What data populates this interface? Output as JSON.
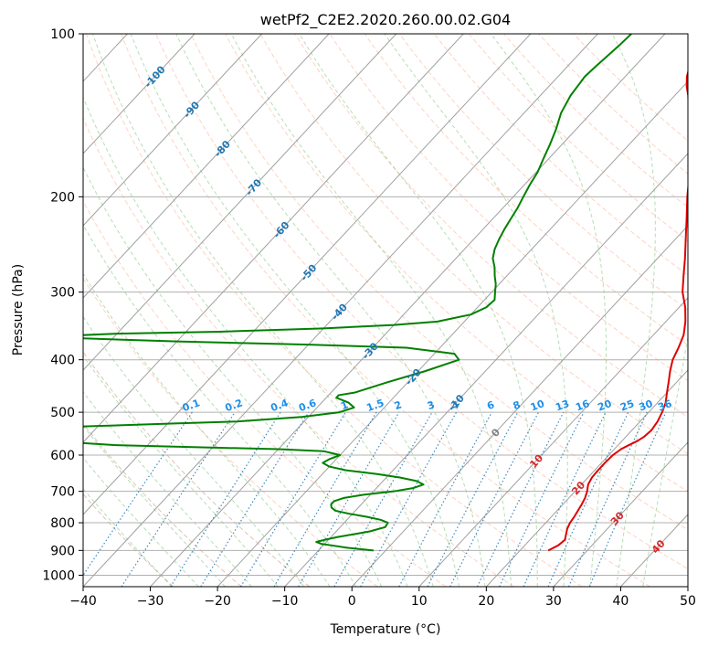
{
  "chart_data": {
    "type": "line",
    "title": "wetPf2_C2E2.2020.260.00.02.G04",
    "xlabel": "Temperature (°C)",
    "ylabel": "Pressure (hPa)",
    "xlim": [
      -40,
      50
    ],
    "ylim": [
      1050,
      100
    ],
    "y_scale": "log",
    "skew_per_decade_degC": 75,
    "x_ticks": [
      "−40",
      "−30",
      "−20",
      "−10",
      "0",
      "10",
      "20",
      "30",
      "40",
      "50"
    ],
    "y_ticks": [
      {
        "p": 100,
        "label": "100"
      },
      {
        "p": 200,
        "label": "200"
      },
      {
        "p": 300,
        "label": "300"
      },
      {
        "p": 400,
        "label": "400"
      },
      {
        "p": 500,
        "label": "500"
      },
      {
        "p": 600,
        "label": "600"
      },
      {
        "p": 700,
        "label": "700"
      },
      {
        "p": 800,
        "label": "800"
      },
      {
        "p": 900,
        "label": "900"
      },
      {
        "p": 1000,
        "label": "1000"
      }
    ],
    "grid": true,
    "isotherms": [
      -150,
      -140,
      -130,
      -120,
      -110,
      -100,
      -90,
      -80,
      -70,
      -60,
      -50,
      -40,
      -30,
      -20,
      -10,
      0,
      10,
      20,
      30,
      40,
      50
    ],
    "isotherm_labels": [
      {
        "text": "-100",
        "p": 120
      },
      {
        "text": "-90",
        "p": 138
      },
      {
        "text": "-80",
        "p": 163
      },
      {
        "text": "-70",
        "p": 192
      },
      {
        "text": "-60",
        "p": 230
      },
      {
        "text": "-50",
        "p": 276
      },
      {
        "text": "-40",
        "p": 326
      },
      {
        "text": "-30",
        "p": 385
      },
      {
        "text": "-20",
        "p": 430
      },
      {
        "text": "-10",
        "p": 480
      }
    ],
    "warm_labels": [
      {
        "text": "0",
        "p": 545,
        "color": "#808080"
      },
      {
        "text": "10",
        "p": 615,
        "color": "#d62728"
      },
      {
        "text": "20",
        "p": 690,
        "color": "#d62728"
      },
      {
        "text": "30",
        "p": 785,
        "color": "#d62728"
      },
      {
        "text": "40",
        "p": 885,
        "color": "#d62728"
      }
    ],
    "mixing_ratios": [
      "0.1",
      "0.2",
      "0.4",
      "0.6",
      "1",
      "1.5",
      "2",
      "3",
      "4",
      "6",
      "8",
      "10",
      "13",
      "16",
      "20",
      "25",
      "30",
      "36"
    ],
    "mixing_ratio_top_hPa": 500,
    "series": [
      {
        "role": "temperature",
        "color": "#e00000",
        "points": [
          [
            900,
            24.2
          ],
          [
            880,
            25.0
          ],
          [
            860,
            25.2
          ],
          [
            840,
            24.6
          ],
          [
            820,
            24.0
          ],
          [
            800,
            23.6
          ],
          [
            780,
            23.4
          ],
          [
            760,
            23.1
          ],
          [
            740,
            22.8
          ],
          [
            720,
            22.4
          ],
          [
            700,
            21.8
          ],
          [
            680,
            21.0
          ],
          [
            660,
            20.6
          ],
          [
            640,
            20.5
          ],
          [
            620,
            20.5
          ],
          [
            600,
            20.6
          ],
          [
            585,
            21.0
          ],
          [
            575,
            21.6
          ],
          [
            565,
            22.3
          ],
          [
            555,
            22.7
          ],
          [
            540,
            22.9
          ],
          [
            520,
            22.6
          ],
          [
            500,
            22.0
          ],
          [
            480,
            21.2
          ],
          [
            460,
            20.0
          ],
          [
            440,
            18.8
          ],
          [
            420,
            17.5
          ],
          [
            400,
            16.3
          ],
          [
            380,
            15.5
          ],
          [
            360,
            14.5
          ],
          [
            340,
            12.9
          ],
          [
            320,
            10.9
          ],
          [
            300,
            8.4
          ],
          [
            280,
            6.3
          ],
          [
            260,
            4.1
          ],
          [
            240,
            1.6
          ],
          [
            220,
            -1.1
          ],
          [
            200,
            -4.1
          ],
          [
            190,
            -5.6
          ],
          [
            180,
            -7.3
          ],
          [
            170,
            -9.0
          ],
          [
            160,
            -10.8
          ],
          [
            150,
            -13.0
          ],
          [
            140,
            -15.5
          ],
          [
            130,
            -18.0
          ],
          [
            125,
            -19.5
          ],
          [
            120,
            -20.8
          ],
          [
            115,
            -21.8
          ],
          [
            110,
            -22.5
          ],
          [
            105,
            -23.5
          ],
          [
            100,
            -24.5
          ]
        ]
      },
      {
        "role": "dewpoint",
        "color": "#008000",
        "points": [
          [
            900,
            -1.8
          ],
          [
            890,
            -6.0
          ],
          [
            880,
            -9.0
          ],
          [
            875,
            -10.5
          ],
          [
            868,
            -11.5
          ],
          [
            860,
            -10.5
          ],
          [
            850,
            -9.0
          ],
          [
            840,
            -7.0
          ],
          [
            830,
            -5.0
          ],
          [
            815,
            -3.3
          ],
          [
            800,
            -3.5
          ],
          [
            790,
            -5.0
          ],
          [
            780,
            -7.5
          ],
          [
            770,
            -10.5
          ],
          [
            760,
            -13.0
          ],
          [
            750,
            -14.0
          ],
          [
            740,
            -14.5
          ],
          [
            730,
            -14.5
          ],
          [
            720,
            -13.5
          ],
          [
            710,
            -11.0
          ],
          [
            700,
            -7.0
          ],
          [
            690,
            -4.5
          ],
          [
            680,
            -3.5
          ],
          [
            670,
            -5.0
          ],
          [
            660,
            -8.0
          ],
          [
            650,
            -12.0
          ],
          [
            640,
            -17.0
          ],
          [
            630,
            -20.0
          ],
          [
            620,
            -21.5
          ],
          [
            610,
            -21.0
          ],
          [
            600,
            -20.0
          ],
          [
            590,
            -23.0
          ],
          [
            585,
            -30.0
          ],
          [
            580,
            -43.0
          ],
          [
            575,
            -55.0
          ],
          [
            565,
            -65.0
          ],
          [
            560,
            -75.0
          ],
          [
            540,
            -77.0
          ],
          [
            535,
            -70.0
          ],
          [
            530,
            -60.0
          ],
          [
            525,
            -50.0
          ],
          [
            520,
            -40.0
          ],
          [
            510,
            -31.0
          ],
          [
            500,
            -26.0
          ],
          [
            490,
            -24.5
          ],
          [
            480,
            -26.0
          ],
          [
            470,
            -28.5
          ],
          [
            465,
            -28.5
          ],
          [
            460,
            -26.5
          ],
          [
            440,
            -23.0
          ],
          [
            420,
            -19.0
          ],
          [
            400,
            -15.5
          ],
          [
            390,
            -17.0
          ],
          [
            380,
            -25.0
          ],
          [
            375,
            -40.0
          ],
          [
            370,
            -60.0
          ],
          [
            365,
            -75.0
          ],
          [
            362,
            -79.0
          ],
          [
            358,
            -70.0
          ],
          [
            355,
            -55.0
          ],
          [
            350,
            -40.0
          ],
          [
            345,
            -30.0
          ],
          [
            340,
            -24.0
          ],
          [
            330,
            -20.0
          ],
          [
            320,
            -18.7
          ],
          [
            310,
            -18.5
          ],
          [
            300,
            -19.5
          ],
          [
            290,
            -20.5
          ],
          [
            280,
            -21.8
          ],
          [
            270,
            -23.0
          ],
          [
            260,
            -24.5
          ],
          [
            250,
            -25.5
          ],
          [
            240,
            -26.2
          ],
          [
            230,
            -26.8
          ],
          [
            220,
            -27.3
          ],
          [
            210,
            -27.8
          ],
          [
            200,
            -28.5
          ],
          [
            190,
            -29.2
          ],
          [
            180,
            -29.8
          ],
          [
            170,
            -30.8
          ],
          [
            160,
            -31.8
          ],
          [
            150,
            -33.0
          ],
          [
            140,
            -34.5
          ],
          [
            130,
            -35.5
          ],
          [
            120,
            -36.0
          ],
          [
            115,
            -35.8
          ],
          [
            110,
            -35.5
          ],
          [
            105,
            -35.2
          ],
          [
            100,
            -35.0
          ]
        ]
      }
    ]
  }
}
